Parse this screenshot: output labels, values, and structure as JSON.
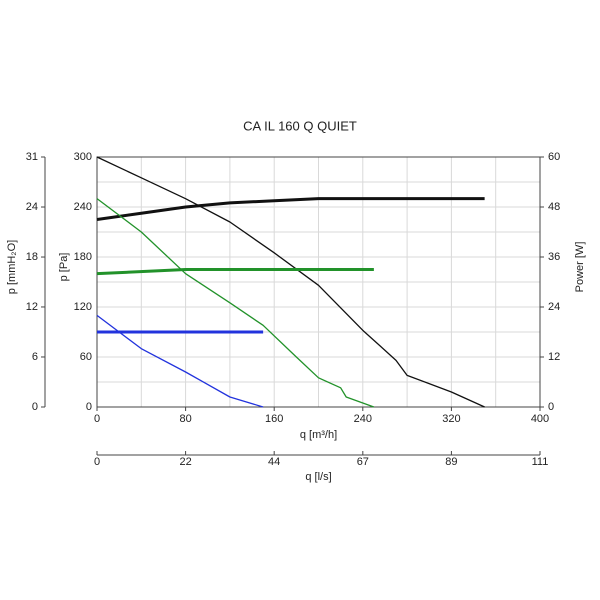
{
  "chart_data": {
    "type": "line",
    "title": "CA IL 160 Q QUIET",
    "xlabel": "q [m³/h]",
    "x2label": "q [l/s]",
    "ylabel": "p [Pa]",
    "y3label": "p [mmH₂O]",
    "y2label": "Power [W]",
    "xlim": [
      0,
      400
    ],
    "xticks": [
      0,
      80,
      160,
      240,
      320,
      400
    ],
    "x_minor_ticks": [
      40,
      120,
      200,
      280,
      360
    ],
    "x2lim": [
      0,
      111.11
    ],
    "x2ticks": [
      {
        "value": 0,
        "label": "0"
      },
      {
        "value": 22.22,
        "label": "22"
      },
      {
        "value": 44.44,
        "label": "44"
      },
      {
        "value": 66.67,
        "label": "67"
      },
      {
        "value": 88.89,
        "label": "89"
      },
      {
        "value": 111.11,
        "label": "111"
      }
    ],
    "ylim": [
      0,
      300
    ],
    "yticks": [
      0,
      60,
      120,
      180,
      240,
      300
    ],
    "y_minor_ticks": [
      30,
      90,
      150,
      210,
      270
    ],
    "y2lim": [
      0,
      60
    ],
    "y2ticks": [
      0,
      12,
      24,
      36,
      48,
      60
    ],
    "y3lim": [
      0,
      30.59
    ],
    "y3ticks": [
      {
        "value": 0,
        "label": "0"
      },
      {
        "value": 6.12,
        "label": "6"
      },
      {
        "value": 12.24,
        "label": "12"
      },
      {
        "value": 18.35,
        "label": "18"
      },
      {
        "value": 24.47,
        "label": "24"
      },
      {
        "value": 30.59,
        "label": "31"
      }
    ],
    "grid": true,
    "series": [
      {
        "color": "#111111",
        "width": 1.3,
        "x": [
          0,
          40,
          80,
          120,
          160,
          200,
          240,
          270,
          280,
          320,
          350
        ],
        "values": [
          300,
          275,
          250,
          222,
          185,
          146,
          92,
          56,
          38,
          18,
          0
        ]
      },
      {
        "color": "#111111",
        "width": 3,
        "axis": "y2",
        "x": [
          0,
          40,
          80,
          120,
          160,
          200,
          350
        ],
        "values": [
          45,
          46.5,
          48,
          49,
          49.5,
          50,
          50
        ]
      },
      {
        "color": "#22922a",
        "width": 1.3,
        "x": [
          0,
          40,
          80,
          120,
          150,
          180,
          200,
          220,
          225,
          250
        ],
        "values": [
          250,
          210,
          160,
          125,
          98,
          60,
          35,
          23,
          12,
          0
        ]
      },
      {
        "color": "#22922a",
        "width": 3,
        "axis": "y2",
        "x": [
          0,
          80,
          250
        ],
        "values": [
          32,
          33,
          33
        ]
      },
      {
        "color": "#2233dd",
        "width": 1.3,
        "x": [
          0,
          40,
          80,
          120,
          150
        ],
        "values": [
          110,
          70,
          42,
          12,
          0
        ]
      },
      {
        "color": "#2233dd",
        "width": 3,
        "axis": "y2",
        "x": [
          0,
          150
        ],
        "values": [
          18,
          18
        ]
      }
    ]
  }
}
